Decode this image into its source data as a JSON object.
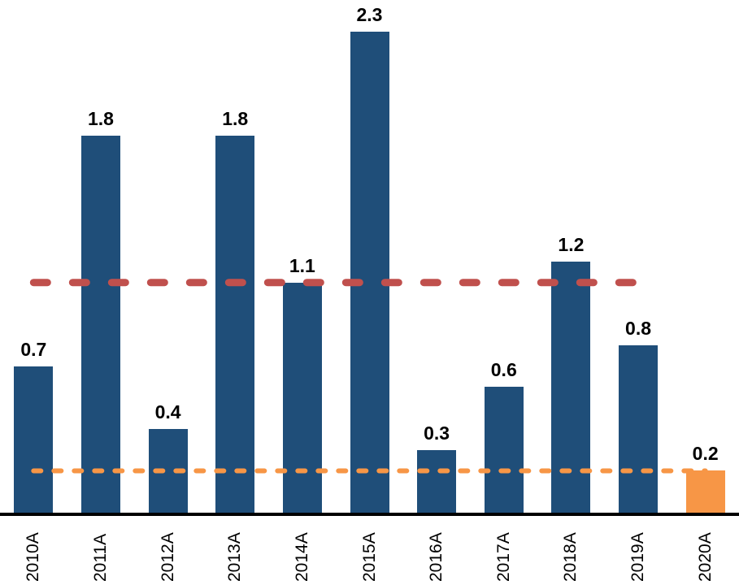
{
  "chart_data": {
    "type": "bar",
    "title": "",
    "xlabel": "",
    "ylabel": "",
    "categories": [
      "2010A",
      "2011A",
      "2012A",
      "2013A",
      "2014A",
      "2015A",
      "2016A",
      "2017A",
      "2018A",
      "2019A",
      "2020A"
    ],
    "values": [
      0.7,
      1.8,
      0.4,
      1.8,
      1.1,
      2.3,
      0.3,
      0.6,
      1.2,
      0.8,
      0.2
    ],
    "data_labels": [
      "0.7",
      "1.8",
      "0.4",
      "1.8",
      "1.1",
      "2.3",
      "0.3",
      "0.6",
      "1.2",
      "0.8",
      "0.2"
    ],
    "series_color": "#1F4E79",
    "highlight_category": "2020A",
    "highlight_color": "#F79646",
    "reference_lines": [
      {
        "name": "average-line",
        "value": 1.1,
        "color": "#C0504D",
        "style": "dashed",
        "from_category": "2010A",
        "to_category": "2019A"
      },
      {
        "name": "current-level-line",
        "value": 0.2,
        "color": "#F79646",
        "style": "dashed",
        "from_category": "2010A",
        "to_category": "2020A"
      }
    ],
    "ylim": [
      0,
      2.45
    ],
    "grid": false,
    "legend": false,
    "x_tick_rotation": 90,
    "axis_color": "#000000",
    "background": "#FFFFFF"
  }
}
